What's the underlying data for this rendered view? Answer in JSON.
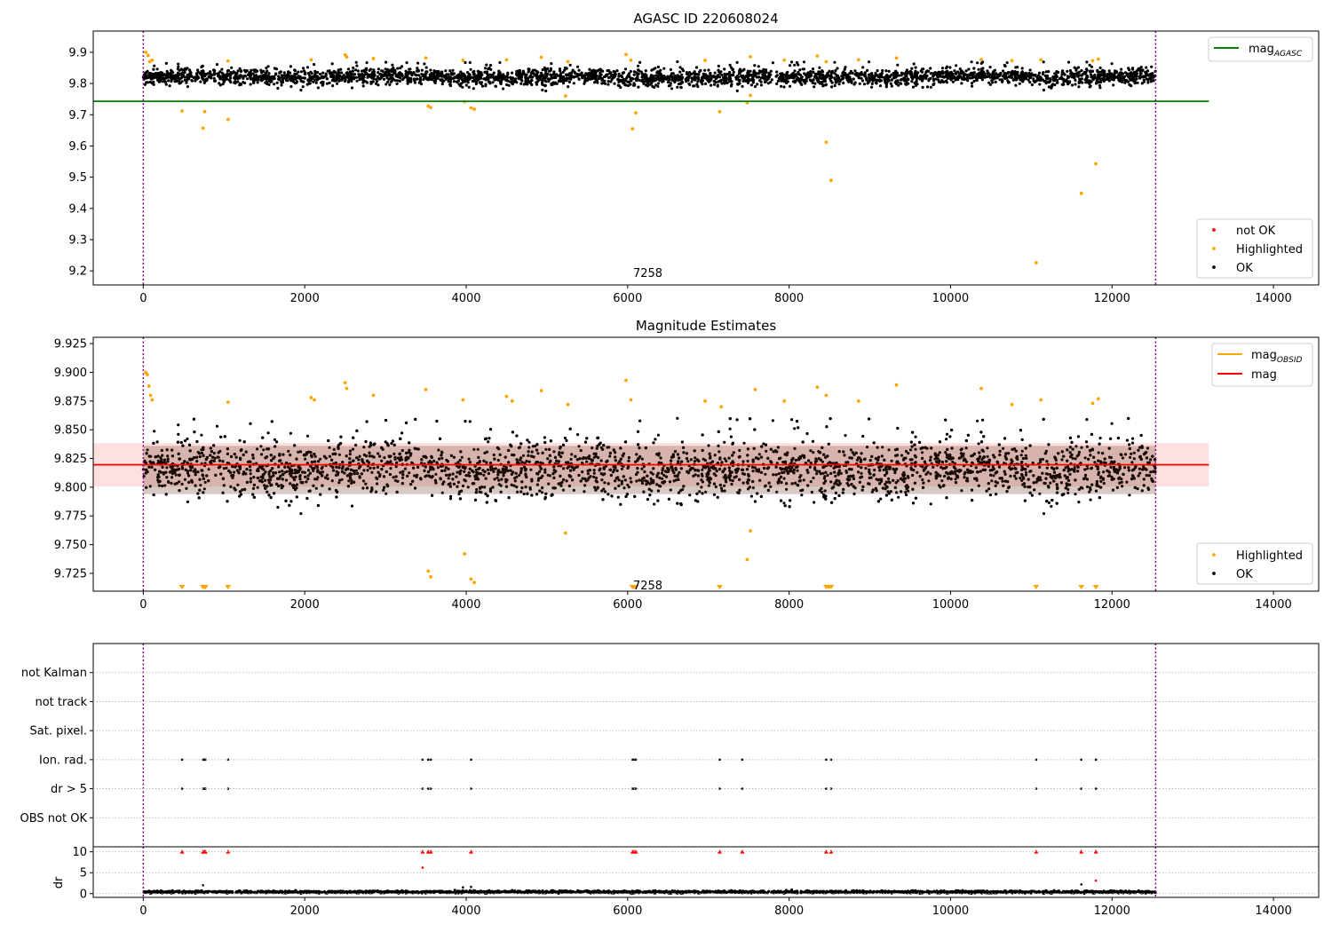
{
  "figure": {
    "title": "AGASC ID 220608024",
    "colors": {
      "ok": "#000000",
      "highlighted": "#ffa500",
      "not_ok": "#ff0000",
      "mag_agasc_line": "#008000",
      "mag_line": "#ff0000",
      "mag_obsid_line": "#ffa500",
      "band_fill": "#ffe0e0",
      "obs_boundary": "#800080"
    }
  },
  "chart_data": [
    {
      "type": "scatter",
      "title": "",
      "xlabel": "",
      "ylabel": "",
      "xlim": [
        -620,
        14560
      ],
      "ylim": [
        9.155,
        9.968
      ],
      "xticks": [
        0,
        2000,
        4000,
        6000,
        8000,
        10000,
        12000,
        14000
      ],
      "xtick_labels": [
        "0",
        "2000",
        "4000",
        "6000",
        "8000",
        "10000",
        "12000",
        "14000"
      ],
      "yticks": [
        9.2,
        9.3,
        9.4,
        9.5,
        9.6,
        9.7,
        9.8,
        9.9
      ],
      "ytick_labels": [
        "9.2",
        "9.3",
        "9.4",
        "9.5",
        "9.6",
        "9.7",
        "9.8",
        "9.9"
      ],
      "hlines": [
        {
          "name": "mag_AGASC",
          "y": 9.743,
          "x_from": -620,
          "x_to": 13200,
          "color": "#008000"
        }
      ],
      "vlines": [
        0,
        12540
      ],
      "annotation": {
        "text": "7258",
        "x": 6250,
        "y": 9.195
      },
      "legend_lines": [
        {
          "label": "mag",
          "subscript": "AGASC",
          "color": "#008000"
        }
      ],
      "legend_markers": [
        {
          "label": "not OK",
          "color": "#ff0000"
        },
        {
          "label": "Highlighted",
          "color": "#ffa500"
        },
        {
          "label": "OK",
          "color": "#000000"
        }
      ],
      "legend_placement": [
        "upper right",
        "lower right"
      ],
      "ok_band": {
        "center": 9.82,
        "low": 9.775,
        "high": 9.87
      },
      "highlighted_points": [
        [
          480,
          9.712
        ],
        [
          740,
          9.657
        ],
        [
          760,
          9.71
        ],
        [
          1050,
          9.685
        ],
        [
          3530,
          9.728
        ],
        [
          3560,
          9.723
        ],
        [
          4060,
          9.722
        ],
        [
          4100,
          9.718
        ],
        [
          3980,
          9.742
        ],
        [
          5230,
          9.76
        ],
        [
          6060,
          9.655
        ],
        [
          6100,
          9.706
        ],
        [
          7140,
          9.71
        ],
        [
          7480,
          9.738
        ],
        [
          7520,
          9.762
        ],
        [
          8460,
          9.612
        ],
        [
          8520,
          9.49
        ],
        [
          11060,
          9.226
        ],
        [
          11620,
          9.448
        ],
        [
          11800,
          9.543
        ],
        [
          30,
          9.9
        ],
        [
          60,
          9.89
        ],
        [
          80,
          9.87
        ],
        [
          110,
          9.875
        ],
        [
          1050,
          9.872
        ],
        [
          2080,
          9.876
        ],
        [
          2500,
          9.892
        ],
        [
          2520,
          9.885
        ],
        [
          2850,
          9.88
        ],
        [
          3500,
          9.882
        ],
        [
          3960,
          9.874
        ],
        [
          4500,
          9.876
        ],
        [
          4930,
          9.884
        ],
        [
          5260,
          9.87
        ],
        [
          5980,
          9.893
        ],
        [
          6040,
          9.875
        ],
        [
          6960,
          9.874
        ],
        [
          7520,
          9.886
        ],
        [
          7940,
          9.875
        ],
        [
          8350,
          9.888
        ],
        [
          8460,
          9.87
        ],
        [
          8860,
          9.876
        ],
        [
          9330,
          9.882
        ],
        [
          10380,
          9.877
        ],
        [
          10760,
          9.873
        ],
        [
          11120,
          9.876
        ],
        [
          11760,
          9.873
        ],
        [
          11830,
          9.878
        ]
      ],
      "not_ok_points": []
    },
    {
      "type": "scatter",
      "title": "Magnitude Estimates",
      "xlabel": "",
      "ylabel": "",
      "xlim": [
        -620,
        14560
      ],
      "ylim": [
        9.7095,
        9.9305
      ],
      "xticks": [
        0,
        2000,
        4000,
        6000,
        8000,
        10000,
        12000,
        14000
      ],
      "xtick_labels": [
        "0",
        "2000",
        "4000",
        "6000",
        "8000",
        "10000",
        "12000",
        "14000"
      ],
      "yticks": [
        9.725,
        9.75,
        9.775,
        9.8,
        9.825,
        9.85,
        9.875,
        9.9,
        9.925
      ],
      "ytick_labels": [
        "9.725",
        "9.750",
        "9.775",
        "9.800",
        "9.825",
        "9.850",
        "9.875",
        "9.900",
        "9.925"
      ],
      "hlines": [
        {
          "name": "mag",
          "y": 9.8195,
          "x_from": -620,
          "x_to": 13200,
          "color": "#ff0000"
        }
      ],
      "band": {
        "low": 9.8005,
        "high": 9.8385,
        "x_from": -620,
        "x_to": 13200
      },
      "vlines": [
        0,
        12540
      ],
      "annotation": {
        "text": "7258",
        "x": 6250,
        "y": 9.715
      },
      "legend_lines": [
        {
          "label": "mag",
          "subscript": "OBSID",
          "color": "#ffa500"
        },
        {
          "label": "mag",
          "subscript": "",
          "color": "#ff0000"
        }
      ],
      "legend_markers": [
        {
          "label": "Highlighted",
          "color": "#ffa500"
        },
        {
          "label": "OK",
          "color": "#000000"
        }
      ],
      "legend_placement": [
        "upper right",
        "lower right"
      ],
      "highlighted_points": [
        [
          30,
          9.9
        ],
        [
          50,
          9.898
        ],
        [
          70,
          9.888
        ],
        [
          90,
          9.88
        ],
        [
          110,
          9.876
        ],
        [
          1050,
          9.874
        ],
        [
          2080,
          9.878
        ],
        [
          2120,
          9.876
        ],
        [
          2500,
          9.891
        ],
        [
          2520,
          9.886
        ],
        [
          2850,
          9.88
        ],
        [
          3500,
          9.885
        ],
        [
          3960,
          9.876
        ],
        [
          4500,
          9.879
        ],
        [
          4570,
          9.875
        ],
        [
          4930,
          9.884
        ],
        [
          5260,
          9.872
        ],
        [
          5980,
          9.893
        ],
        [
          6040,
          9.876
        ],
        [
          6960,
          9.875
        ],
        [
          7160,
          9.87
        ],
        [
          7580,
          9.885
        ],
        [
          7940,
          9.875
        ],
        [
          8350,
          9.887
        ],
        [
          8460,
          9.88
        ],
        [
          8860,
          9.875
        ],
        [
          9330,
          9.889
        ],
        [
          10380,
          9.886
        ],
        [
          10760,
          9.872
        ],
        [
          11120,
          9.876
        ],
        [
          11760,
          9.873
        ],
        [
          11830,
          9.877
        ],
        [
          3530,
          9.727
        ],
        [
          3560,
          9.722
        ],
        [
          3980,
          9.742
        ],
        [
          4060,
          9.72
        ],
        [
          4100,
          9.717
        ],
        [
          5230,
          9.76
        ],
        [
          7480,
          9.737
        ],
        [
          7520,
          9.762
        ]
      ],
      "offscale_markers_x": [
        480,
        740,
        760,
        770,
        1050,
        6060,
        6080,
        6100,
        7140,
        8460,
        8490,
        8520,
        11060,
        11620,
        11800
      ],
      "ok_band": {
        "center": 9.815,
        "low": 9.775,
        "high": 9.86
      }
    },
    {
      "type": "scatter",
      "title": "",
      "xlabel": "",
      "ylabel": "",
      "xlim": [
        -620,
        14560
      ],
      "ylim": [
        0,
        7
      ],
      "xticks": [],
      "xtick_labels": [],
      "yticks": [
        1,
        2,
        3,
        4,
        5,
        6
      ],
      "ytick_labels": [
        "OBS not OK",
        "dr > 5",
        "Ion. rad.",
        "Sat. pixel.",
        "not track",
        "not Kalman"
      ],
      "vlines": [
        0,
        12540
      ],
      "grid": "horizontal dotted",
      "flag_rows": {
        "OBS not OK": [],
        "dr > 5": [
          480,
          740,
          760,
          770,
          1050,
          3460,
          3530,
          3560,
          4060,
          6060,
          6080,
          6100,
          7140,
          7420,
          8460,
          8520,
          11060,
          11620,
          11800
        ],
        "Ion. rad.": [
          480,
          740,
          760,
          770,
          1050,
          3460,
          3530,
          3560,
          4060,
          6060,
          6080,
          6100,
          7140,
          7420,
          8460,
          8520,
          11060,
          11620,
          11800
        ],
        "Sat. pixel.": [],
        "not track": [],
        "not Kalman": []
      }
    },
    {
      "type": "scatter",
      "title": "",
      "xlabel": "",
      "ylabel": "dr",
      "xlim": [
        -620,
        14560
      ],
      "ylim": [
        -0.9,
        11.2
      ],
      "xticks": [
        0,
        2000,
        4000,
        6000,
        8000,
        10000,
        12000,
        14000
      ],
      "xtick_labels": [
        "0",
        "2000",
        "4000",
        "6000",
        "8000",
        "10000",
        "12000",
        "14000"
      ],
      "yticks": [
        0,
        5,
        10
      ],
      "ytick_labels": [
        "0",
        "5",
        "10"
      ],
      "vlines": [
        0,
        12540
      ],
      "grid": "horizontal dotted",
      "clipped_markers_x": [
        480,
        740,
        760,
        770,
        1050,
        3460,
        3530,
        3560,
        4060,
        6060,
        6080,
        6100,
        7140,
        7420,
        8460,
        8520,
        11060,
        11620,
        11800
      ],
      "clip_value": 10,
      "outlier_points": [
        [
          3460,
          6.2
        ],
        [
          740,
          2.0
        ],
        [
          11800,
          3.1
        ],
        [
          11620,
          2.2
        ],
        [
          4060,
          1.6
        ],
        [
          3960,
          1.5
        ]
      ],
      "baseline": {
        "center": 0.4,
        "spread": 0.35
      }
    }
  ]
}
